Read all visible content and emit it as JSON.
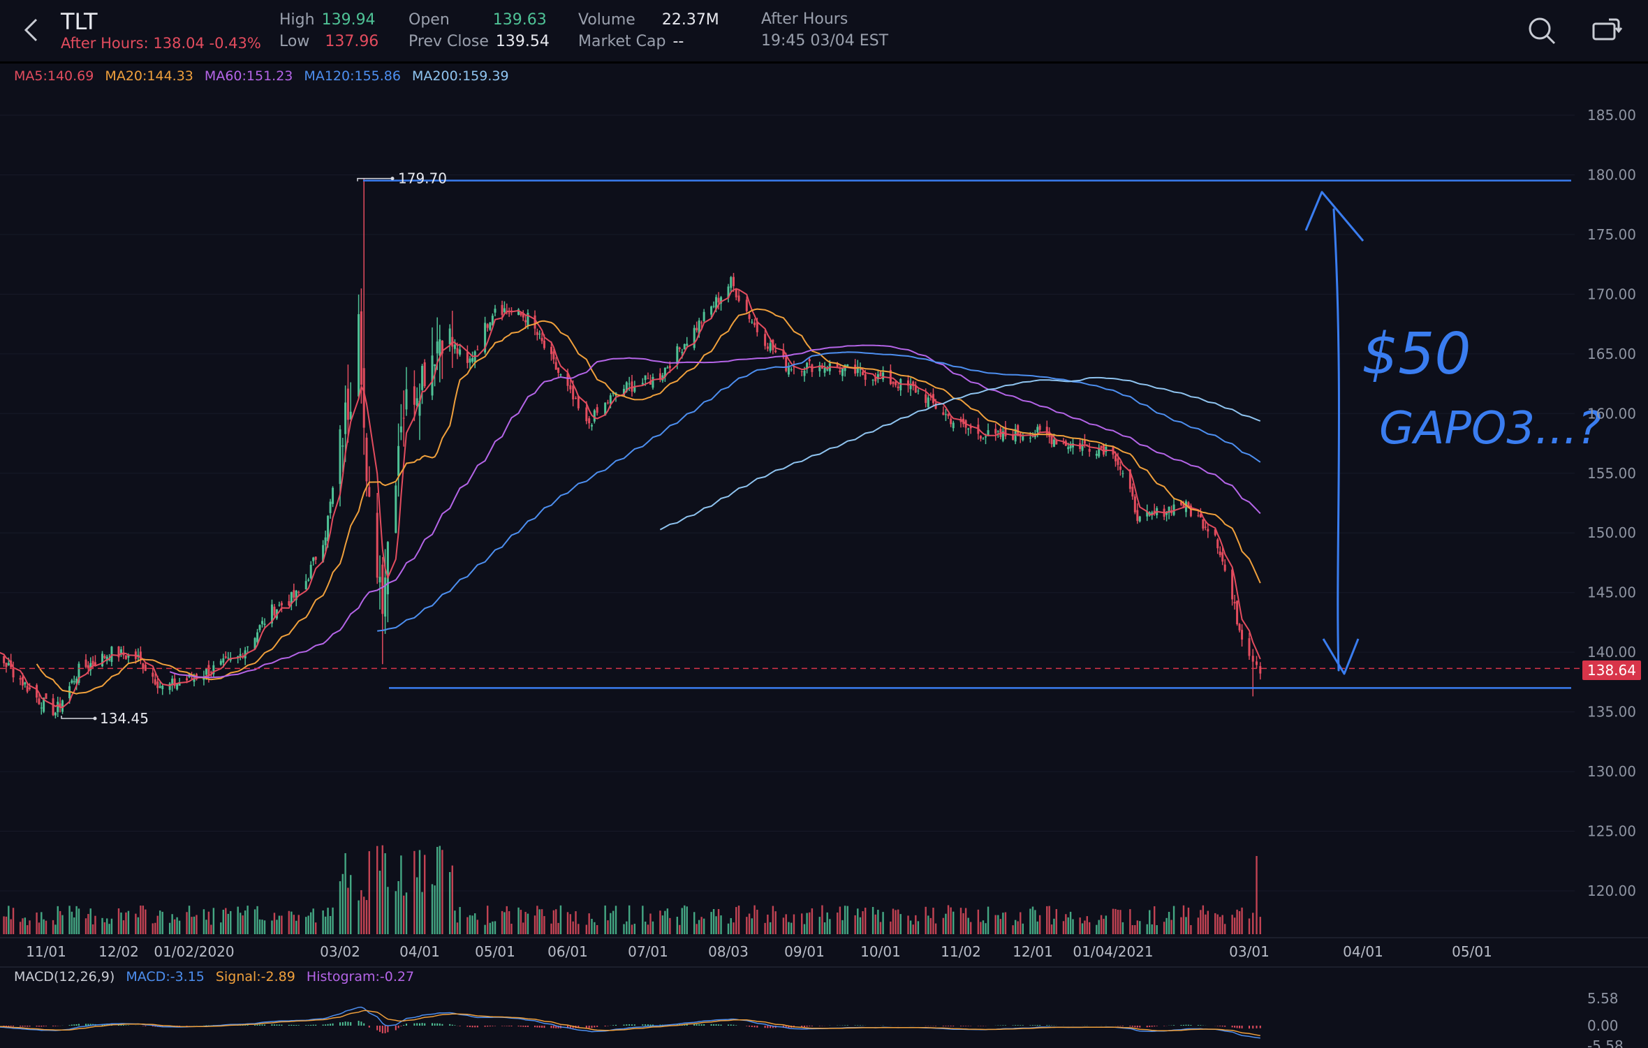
{
  "header": {
    "symbol": "TLT",
    "after_hours_price": "After Hours: 138.04 -0.43%",
    "high_label": "High",
    "high_value": "139.94",
    "low_label": "Low",
    "low_value": "137.96",
    "open_label": "Open",
    "open_value": "139.63",
    "prev_close_label": "Prev Close",
    "prev_close_value": "139.54",
    "volume_label": "Volume",
    "volume_value": "22.37M",
    "market_cap_label": "Market Cap",
    "market_cap_value": "--",
    "after_hours_label": "After Hours",
    "after_hours_time": "19:45 03/04 EST"
  },
  "icons": {
    "back": "chevron-left-icon",
    "search": "search-icon",
    "rotate": "rotate-screen-icon"
  },
  "colors": {
    "background": "#0d0f1a",
    "up": "#4fc296",
    "down": "#e34c5e",
    "ma5": "#e34c5e",
    "ma20": "#f0a03c",
    "ma60": "#b565e8",
    "ma120": "#4d8ff0",
    "ma200": "#8fc4f0",
    "drawing": "#3a7df0",
    "current_price": "#d8354a"
  },
  "ma_legend": {
    "ma5": "MA5:140.69",
    "ma20": "MA20:144.33",
    "ma60": "MA60:151.23",
    "ma120": "MA120:155.86",
    "ma200": "MA200:159.39"
  },
  "macd_legend": {
    "name": "MACD(12,26,9)",
    "macd": "MACD:-3.15",
    "signal": "Signal:-2.89",
    "histogram": "Histogram:-0.27"
  },
  "annotations": {
    "high_marker": "179.70",
    "low_marker": "134.45",
    "current_price": "138.64",
    "handwriting_line1": "$50",
    "handwriting_line2": "GAPO3...?"
  },
  "chart_data": {
    "type": "candlestick",
    "title": "",
    "y_axis_ticks": [
      "185.00",
      "180.00",
      "175.00",
      "170.00",
      "165.00",
      "160.00",
      "155.00",
      "150.00",
      "145.00",
      "140.00",
      "135.00",
      "130.00",
      "125.00",
      "120.00"
    ],
    "ylim": [
      117.5,
      188
    ],
    "x_axis_ticks": [
      "11/01",
      "12/02",
      "01/02/2020",
      "03/02",
      "04/01",
      "05/01",
      "06/01",
      "07/01",
      "08/03",
      "09/01",
      "10/01",
      "11/02",
      "12/01",
      "01/04/2021",
      "03/01",
      "04/01",
      "05/01"
    ],
    "close_path": [
      [
        "2019-10-01",
        141.5
      ],
      [
        "2019-10-15",
        139.0
      ],
      [
        "2019-10-29",
        136.0
      ],
      [
        "2019-11-05",
        135.0
      ],
      [
        "2019-11-15",
        138.5
      ],
      [
        "2019-11-29",
        140.0
      ],
      [
        "2019-12-10",
        139.5
      ],
      [
        "2019-12-20",
        137.0
      ],
      [
        "2020-01-03",
        138.0
      ],
      [
        "2020-01-20",
        139.5
      ],
      [
        "2020-02-03",
        143.5
      ],
      [
        "2020-02-15",
        145.0
      ],
      [
        "2020-02-25",
        150.0
      ],
      [
        "2020-03-06",
        162.0
      ],
      [
        "2020-03-09",
        170.0
      ],
      [
        "2020-03-12",
        153.0
      ],
      [
        "2020-03-18",
        145.0
      ],
      [
        "2020-03-25",
        160.0
      ],
      [
        "2020-04-10",
        167.0
      ],
      [
        "2020-04-20",
        164.0
      ],
      [
        "2020-05-01",
        169.0
      ],
      [
        "2020-05-15",
        168.0
      ],
      [
        "2020-06-01",
        162.0
      ],
      [
        "2020-06-08",
        159.0
      ],
      [
        "2020-06-20",
        162.0
      ],
      [
        "2020-07-05",
        163.0
      ],
      [
        "2020-07-20",
        167.0
      ],
      [
        "2020-08-04",
        171.0
      ],
      [
        "2020-08-14",
        167.0
      ],
      [
        "2020-08-25",
        164.0
      ],
      [
        "2020-09-10",
        164.0
      ],
      [
        "2020-10-01",
        163.0
      ],
      [
        "2020-10-15",
        162.0
      ],
      [
        "2020-11-01",
        159.0
      ],
      [
        "2020-11-15",
        158.0
      ],
      [
        "2020-12-01",
        158.5
      ],
      [
        "2020-12-15",
        157.5
      ],
      [
        "2021-01-04",
        157.0
      ],
      [
        "2021-01-15",
        151.0
      ],
      [
        "2021-02-01",
        152.5
      ],
      [
        "2021-02-15",
        150.0
      ],
      [
        "2021-02-25",
        142.0
      ],
      [
        "2021-03-04",
        138.64
      ]
    ],
    "high": 179.7,
    "low": 134.45,
    "current_price": 138.64,
    "moving_averages": [
      {
        "name": "MA5",
        "last": 140.69
      },
      {
        "name": "MA20",
        "last": 144.33
      },
      {
        "name": "MA60",
        "last": 151.23
      },
      {
        "name": "MA120",
        "last": 155.86
      },
      {
        "name": "MA200",
        "last": 159.39
      }
    ],
    "volume": {
      "last": "22.37M"
    },
    "macd": {
      "macd": -3.15,
      "signal": -2.89,
      "histogram": -0.27,
      "y_ticks": [
        "5.58",
        "0.00",
        "-5.58"
      ]
    },
    "drawn_levels": [
      179.7,
      137.0
    ],
    "grid": true
  }
}
